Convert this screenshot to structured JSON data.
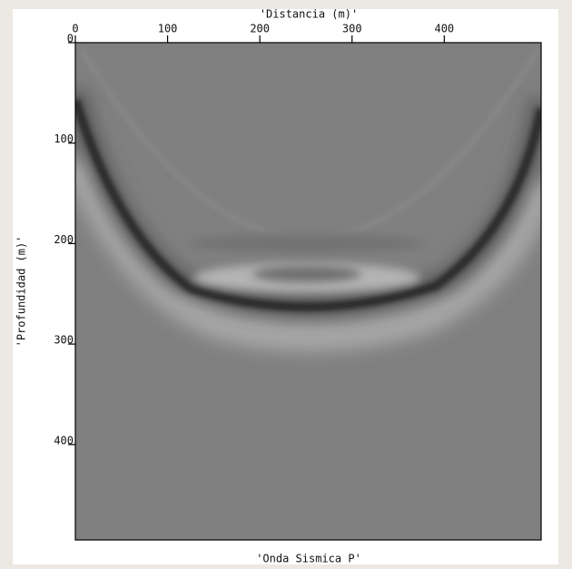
{
  "chart_data": {
    "type": "image",
    "title": "'Distancia (m)'",
    "x_label": "'Onda Sismica P'",
    "y_label": "'Profundidad (m)'",
    "colormap": "gray",
    "xlim": [
      0,
      505
    ],
    "xticks": [
      0,
      100,
      200,
      300,
      400
    ],
    "ylim": [
      0,
      495
    ],
    "yticks": [
      0,
      100,
      200,
      300,
      400
    ],
    "y_inverted": true
  }
}
